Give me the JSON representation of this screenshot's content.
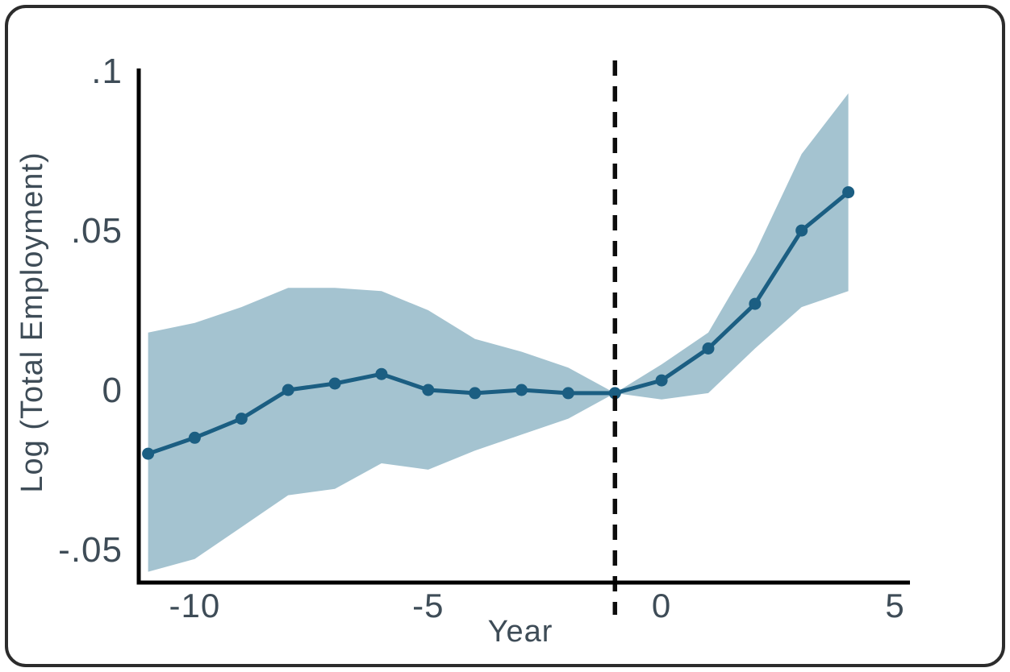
{
  "chart_data": {
    "type": "line",
    "title": "",
    "xlabel": "Year",
    "ylabel": "Log (Total Employment)",
    "x": [
      -11,
      -10,
      -9,
      -8,
      -7,
      -6,
      -5,
      -4,
      -3,
      -2,
      -1,
      0,
      1,
      2,
      3,
      4
    ],
    "series": [
      {
        "name": "point-estimate",
        "values": [
          -0.02,
          -0.015,
          -0.009,
          0.0,
          0.002,
          0.005,
          0.0,
          -0.001,
          0.0,
          -0.001,
          -0.001,
          0.003,
          0.013,
          0.027,
          0.05,
          0.062
        ]
      }
    ],
    "confidence_band": {
      "upper": [
        0.018,
        0.021,
        0.026,
        0.032,
        0.032,
        0.031,
        0.025,
        0.016,
        0.012,
        0.007,
        -0.001,
        0.008,
        0.018,
        0.043,
        0.074,
        0.093
      ],
      "lower": [
        -0.057,
        -0.053,
        -0.043,
        -0.033,
        -0.031,
        -0.023,
        -0.025,
        -0.019,
        -0.014,
        -0.009,
        -0.001,
        -0.003,
        -0.001,
        0.013,
        0.026,
        0.031
      ]
    },
    "reference_line": {
      "type": "vline",
      "x": -1,
      "style": "dashed"
    },
    "x_ticks": [
      {
        "value": -10,
        "label": "-10"
      },
      {
        "value": -5,
        "label": "-5"
      },
      {
        "value": 0,
        "label": "0"
      },
      {
        "value": 5,
        "label": "5"
      }
    ],
    "y_ticks": [
      {
        "value": 0.1,
        "label": ".1"
      },
      {
        "value": 0.05,
        "label": ".05"
      },
      {
        "value": 0,
        "label": "0"
      },
      {
        "value": -0.05,
        "label": "-.05"
      }
    ],
    "xlim": [
      -11.2,
      5.32
    ],
    "ylim": [
      -0.0609,
      0.1008
    ],
    "grid": "off",
    "legend": "none",
    "colors": {
      "line": "#1b5e82",
      "band": "#a4c3d0",
      "reference_line": "#0d0d0d",
      "axis": "#000000",
      "text": "#3e4c57",
      "frame_border": "#2c2c2c",
      "background": "#ffffff"
    }
  }
}
